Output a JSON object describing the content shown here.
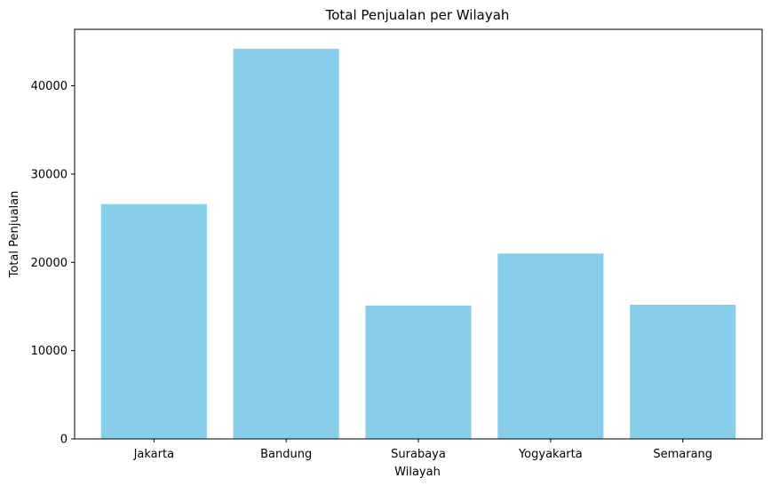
{
  "chart_data": {
    "type": "bar",
    "title": "Total Penjualan per Wilayah",
    "xlabel": "Wilayah",
    "ylabel": "Total Penjualan",
    "categories": [
      "Jakarta",
      "Bandung",
      "Surabaya",
      "Yogyakarta",
      "Semarang"
    ],
    "values": [
      26600,
      44200,
      15100,
      21000,
      15200
    ],
    "ylim": [
      0,
      46400
    ],
    "yticks": [
      0,
      10000,
      20000,
      30000,
      40000
    ],
    "grid": false,
    "legend": "none",
    "bar_color": "#87CEEB"
  }
}
